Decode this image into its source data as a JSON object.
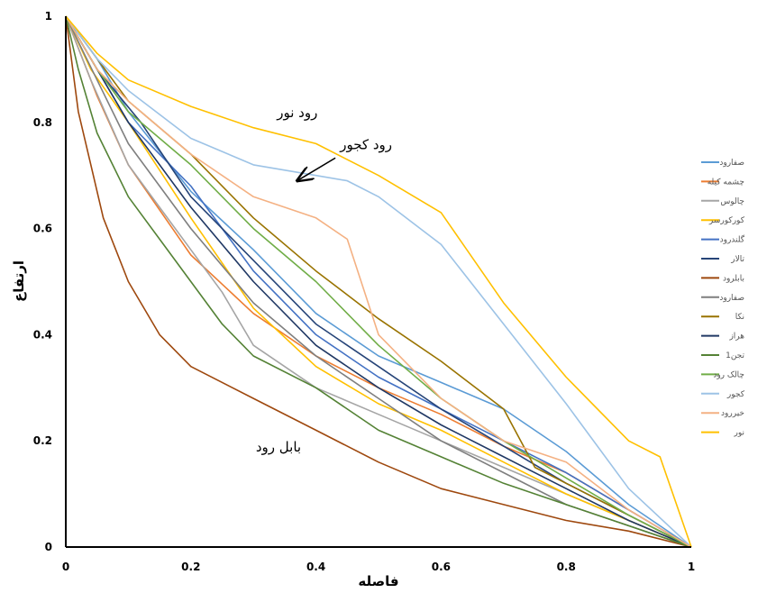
{
  "chart_data": {
    "type": "line",
    "title": "",
    "xlabel": "فاصله",
    "ylabel": "ارتفاع",
    "xlim": [
      0,
      1
    ],
    "ylim": [
      0,
      1
    ],
    "xticks": [
      "0",
      "0.2",
      "0.4",
      "0.6",
      "0.8",
      "1"
    ],
    "yticks": [
      "0",
      "0.2",
      "0.4",
      "0.6",
      "0.8",
      "1"
    ],
    "grid": false,
    "legend_position": "right",
    "annotations": [
      {
        "text": "رود نور",
        "x": 0.37,
        "y": 0.81
      },
      {
        "text": "رود کجور",
        "x": 0.48,
        "y": 0.75,
        "arrow_to": [
          0.37,
          0.69
        ]
      },
      {
        "text": "بابل رود",
        "x": 0.34,
        "y": 0.18
      }
    ],
    "series": [
      {
        "name": "صفارود",
        "color": "#5B9BD5",
        "points": [
          [
            0,
            1
          ],
          [
            0.05,
            0.92
          ],
          [
            0.1,
            0.82
          ],
          [
            0.2,
            0.67
          ],
          [
            0.3,
            0.56
          ],
          [
            0.4,
            0.44
          ],
          [
            0.5,
            0.36
          ],
          [
            0.6,
            0.31
          ],
          [
            0.7,
            0.26
          ],
          [
            0.8,
            0.18
          ],
          [
            0.9,
            0.08
          ],
          [
            1,
            0
          ]
        ]
      },
      {
        "name": "چشمه کیله",
        "color": "#ED7D31",
        "points": [
          [
            0,
            1
          ],
          [
            0.05,
            0.85
          ],
          [
            0.1,
            0.72
          ],
          [
            0.2,
            0.55
          ],
          [
            0.3,
            0.44
          ],
          [
            0.4,
            0.36
          ],
          [
            0.5,
            0.3
          ],
          [
            0.6,
            0.25
          ],
          [
            0.7,
            0.19
          ],
          [
            0.8,
            0.14
          ],
          [
            0.9,
            0.07
          ],
          [
            1,
            0
          ]
        ]
      },
      {
        "name": "چالوس",
        "color": "#A5A5A5",
        "points": [
          [
            0,
            1
          ],
          [
            0.04,
            0.88
          ],
          [
            0.1,
            0.72
          ],
          [
            0.2,
            0.56
          ],
          [
            0.25,
            0.48
          ],
          [
            0.3,
            0.38
          ],
          [
            0.4,
            0.3
          ],
          [
            0.5,
            0.25
          ],
          [
            0.6,
            0.2
          ],
          [
            0.7,
            0.15
          ],
          [
            0.8,
            0.1
          ],
          [
            0.9,
            0.05
          ],
          [
            1,
            0
          ]
        ]
      },
      {
        "name": "کورکورسر",
        "color": "#FFC000",
        "points": [
          [
            0,
            1
          ],
          [
            0.04,
            0.9
          ],
          [
            0.1,
            0.8
          ],
          [
            0.2,
            0.62
          ],
          [
            0.3,
            0.45
          ],
          [
            0.4,
            0.34
          ],
          [
            0.5,
            0.27
          ],
          [
            0.6,
            0.22
          ],
          [
            0.7,
            0.16
          ],
          [
            0.8,
            0.1
          ],
          [
            0.9,
            0.05
          ],
          [
            1,
            0
          ]
        ]
      },
      {
        "name": "گلندرود",
        "color": "#4472C4",
        "points": [
          [
            0,
            1
          ],
          [
            0.05,
            0.9
          ],
          [
            0.1,
            0.8
          ],
          [
            0.2,
            0.68
          ],
          [
            0.25,
            0.6
          ],
          [
            0.3,
            0.52
          ],
          [
            0.4,
            0.4
          ],
          [
            0.5,
            0.32
          ],
          [
            0.6,
            0.26
          ],
          [
            0.7,
            0.2
          ],
          [
            0.8,
            0.14
          ],
          [
            0.9,
            0.07
          ],
          [
            1,
            0
          ]
        ]
      },
      {
        "name": "تالار",
        "color": "#264478",
        "points": [
          [
            0,
            1
          ],
          [
            0.05,
            0.9
          ],
          [
            0.12,
            0.8
          ],
          [
            0.2,
            0.66
          ],
          [
            0.3,
            0.54
          ],
          [
            0.4,
            0.42
          ],
          [
            0.5,
            0.34
          ],
          [
            0.6,
            0.26
          ],
          [
            0.7,
            0.19
          ],
          [
            0.8,
            0.12
          ],
          [
            0.9,
            0.06
          ],
          [
            1,
            0
          ]
        ]
      },
      {
        "name": "بابلرود",
        "color": "#9E480E",
        "points": [
          [
            0,
            1
          ],
          [
            0.02,
            0.82
          ],
          [
            0.04,
            0.72
          ],
          [
            0.06,
            0.62
          ],
          [
            0.1,
            0.5
          ],
          [
            0.15,
            0.4
          ],
          [
            0.2,
            0.34
          ],
          [
            0.3,
            0.28
          ],
          [
            0.4,
            0.22
          ],
          [
            0.5,
            0.16
          ],
          [
            0.6,
            0.11
          ],
          [
            0.7,
            0.08
          ],
          [
            0.8,
            0.05
          ],
          [
            0.9,
            0.03
          ],
          [
            1,
            0
          ]
        ]
      },
      {
        "name": "صفارود",
        "color": "#7F7F7F",
        "points": [
          [
            0,
            1
          ],
          [
            0.05,
            0.88
          ],
          [
            0.1,
            0.76
          ],
          [
            0.2,
            0.6
          ],
          [
            0.3,
            0.46
          ],
          [
            0.4,
            0.36
          ],
          [
            0.5,
            0.28
          ],
          [
            0.6,
            0.2
          ],
          [
            0.7,
            0.14
          ],
          [
            0.8,
            0.08
          ],
          [
            0.9,
            0.04
          ],
          [
            1,
            0
          ]
        ]
      },
      {
        "name": "نکا",
        "color": "#997300",
        "points": [
          [
            0,
            1
          ],
          [
            0.05,
            0.92
          ],
          [
            0.1,
            0.84
          ],
          [
            0.2,
            0.74
          ],
          [
            0.3,
            0.62
          ],
          [
            0.4,
            0.52
          ],
          [
            0.5,
            0.43
          ],
          [
            0.6,
            0.35
          ],
          [
            0.7,
            0.26
          ],
          [
            0.75,
            0.15
          ],
          [
            0.8,
            0.12
          ],
          [
            0.9,
            0.06
          ],
          [
            1,
            0
          ]
        ]
      },
      {
        "name": "هراز",
        "color": "#203864",
        "points": [
          [
            0,
            1
          ],
          [
            0.05,
            0.9
          ],
          [
            0.1,
            0.8
          ],
          [
            0.2,
            0.64
          ],
          [
            0.3,
            0.5
          ],
          [
            0.4,
            0.38
          ],
          [
            0.5,
            0.3
          ],
          [
            0.6,
            0.23
          ],
          [
            0.7,
            0.17
          ],
          [
            0.8,
            0.11
          ],
          [
            0.9,
            0.05
          ],
          [
            1,
            0
          ]
        ]
      },
      {
        "name": "تجن1",
        "color": "#548235",
        "points": [
          [
            0,
            1
          ],
          [
            0.02,
            0.9
          ],
          [
            0.05,
            0.78
          ],
          [
            0.1,
            0.66
          ],
          [
            0.15,
            0.58
          ],
          [
            0.2,
            0.5
          ],
          [
            0.25,
            0.42
          ],
          [
            0.3,
            0.36
          ],
          [
            0.4,
            0.3
          ],
          [
            0.5,
            0.22
          ],
          [
            0.6,
            0.17
          ],
          [
            0.7,
            0.12
          ],
          [
            0.8,
            0.08
          ],
          [
            0.9,
            0.04
          ],
          [
            1,
            0
          ]
        ]
      },
      {
        "name": "چالک رود",
        "color": "#70AD47",
        "points": [
          [
            0,
            1
          ],
          [
            0.05,
            0.9
          ],
          [
            0.1,
            0.82
          ],
          [
            0.2,
            0.72
          ],
          [
            0.3,
            0.6
          ],
          [
            0.4,
            0.5
          ],
          [
            0.5,
            0.38
          ],
          [
            0.6,
            0.28
          ],
          [
            0.7,
            0.2
          ],
          [
            0.8,
            0.13
          ],
          [
            0.9,
            0.06
          ],
          [
            1,
            0
          ]
        ]
      },
      {
        "name": "کجور",
        "color": "#9DC3E6",
        "points": [
          [
            0,
            1
          ],
          [
            0.05,
            0.92
          ],
          [
            0.1,
            0.86
          ],
          [
            0.2,
            0.77
          ],
          [
            0.3,
            0.72
          ],
          [
            0.4,
            0.7
          ],
          [
            0.45,
            0.69
          ],
          [
            0.5,
            0.66
          ],
          [
            0.6,
            0.57
          ],
          [
            0.7,
            0.42
          ],
          [
            0.8,
            0.27
          ],
          [
            0.9,
            0.11
          ],
          [
            1,
            0
          ]
        ]
      },
      {
        "name": "خیررود",
        "color": "#F4B183",
        "points": [
          [
            0,
            1
          ],
          [
            0.05,
            0.9
          ],
          [
            0.1,
            0.84
          ],
          [
            0.2,
            0.74
          ],
          [
            0.3,
            0.66
          ],
          [
            0.4,
            0.62
          ],
          [
            0.45,
            0.58
          ],
          [
            0.5,
            0.4
          ],
          [
            0.6,
            0.28
          ],
          [
            0.7,
            0.2
          ],
          [
            0.8,
            0.16
          ],
          [
            0.9,
            0.07
          ],
          [
            1,
            0
          ]
        ]
      },
      {
        "name": "نور",
        "color": "#FFC000",
        "points": [
          [
            0,
            1
          ],
          [
            0.05,
            0.93
          ],
          [
            0.1,
            0.88
          ],
          [
            0.2,
            0.83
          ],
          [
            0.3,
            0.79
          ],
          [
            0.4,
            0.76
          ],
          [
            0.5,
            0.7
          ],
          [
            0.6,
            0.63
          ],
          [
            0.7,
            0.46
          ],
          [
            0.8,
            0.32
          ],
          [
            0.9,
            0.2
          ],
          [
            0.95,
            0.17
          ],
          [
            1,
            0
          ]
        ]
      }
    ]
  }
}
